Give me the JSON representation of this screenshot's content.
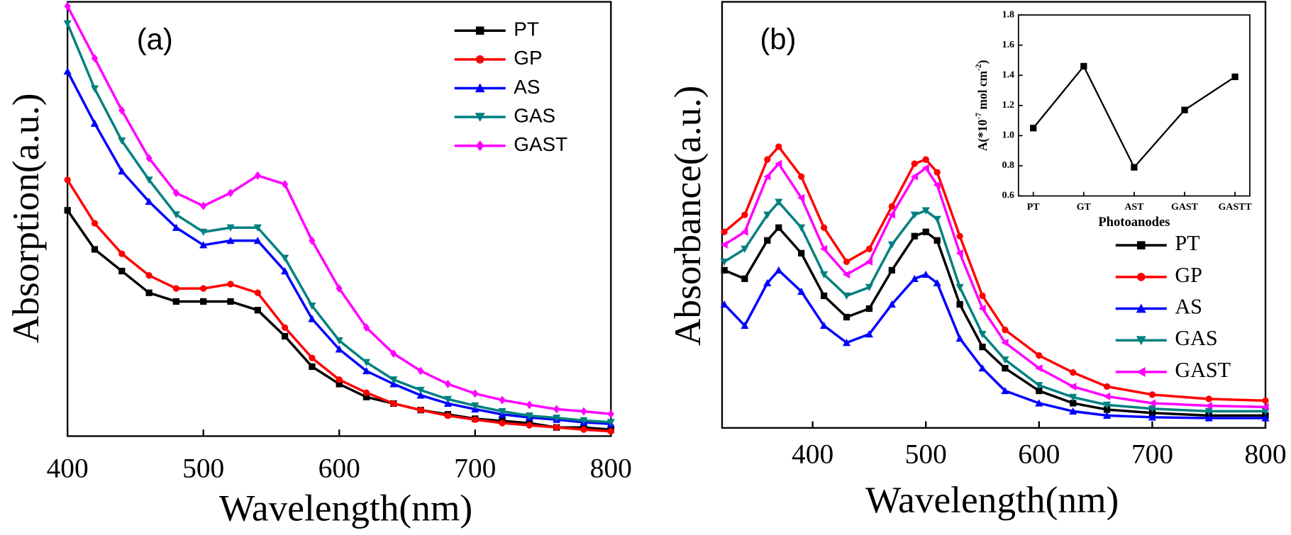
{
  "chart_data": [
    {
      "type": "line",
      "annotation": "(a)",
      "x_label": "Wavelength(nm)",
      "y_label": "Absorption(a.u.)",
      "x": [
        400,
        420,
        440,
        460,
        480,
        500,
        520,
        540,
        560,
        580,
        600,
        620,
        640,
        660,
        680,
        700,
        720,
        740,
        760,
        780,
        800
      ],
      "xlim": [
        400,
        800
      ],
      "xticks": [
        400,
        500,
        600,
        700,
        800
      ],
      "ylim": [
        0,
        1
      ],
      "legend": "upper right",
      "series": [
        {
          "name": "PT",
          "color": "#000000",
          "marker": "square",
          "values": [
            0.52,
            0.43,
            0.38,
            0.33,
            0.31,
            0.31,
            0.31,
            0.29,
            0.23,
            0.16,
            0.12,
            0.09,
            0.075,
            0.06,
            0.05,
            0.04,
            0.035,
            0.03,
            0.02,
            0.02,
            0.015
          ]
        },
        {
          "name": "GP",
          "color": "#ff0000",
          "marker": "circle",
          "values": [
            0.59,
            0.49,
            0.42,
            0.37,
            0.34,
            0.34,
            0.35,
            0.33,
            0.25,
            0.18,
            0.13,
            0.1,
            0.075,
            0.06,
            0.047,
            0.038,
            0.03,
            0.025,
            0.02,
            0.015,
            0.011
          ]
        },
        {
          "name": "AS",
          "color": "#0000ff",
          "marker": "triangle-up",
          "values": [
            0.84,
            0.72,
            0.61,
            0.54,
            0.48,
            0.44,
            0.45,
            0.45,
            0.38,
            0.27,
            0.2,
            0.15,
            0.12,
            0.094,
            0.075,
            0.062,
            0.05,
            0.043,
            0.038,
            0.032,
            0.028
          ]
        },
        {
          "name": "GAS",
          "color": "#008080",
          "marker": "triangle-down",
          "values": [
            0.95,
            0.8,
            0.68,
            0.59,
            0.51,
            0.47,
            0.48,
            0.48,
            0.41,
            0.3,
            0.22,
            0.17,
            0.13,
            0.106,
            0.085,
            0.07,
            0.057,
            0.047,
            0.042,
            0.036,
            0.032
          ]
        },
        {
          "name": "GAST",
          "color": "#ff00ff",
          "marker": "diamond",
          "values": [
            0.99,
            0.87,
            0.75,
            0.64,
            0.56,
            0.53,
            0.56,
            0.6,
            0.58,
            0.45,
            0.34,
            0.25,
            0.19,
            0.15,
            0.12,
            0.098,
            0.083,
            0.072,
            0.062,
            0.057,
            0.051
          ]
        }
      ]
    },
    {
      "type": "line",
      "annotation": "(b)",
      "x_label": "Wavelength(nm)",
      "y_label": "Absorbance(a.u.)",
      "x": [
        322,
        340,
        360,
        370,
        390,
        410,
        430,
        450,
        470,
        490,
        500,
        510,
        530,
        550,
        570,
        600,
        630,
        660,
        700,
        750,
        800
      ],
      "xlim": [
        320,
        800
      ],
      "xticks": [
        400,
        500,
        600,
        700,
        800
      ],
      "ylim": [
        0,
        1
      ],
      "legend": "center right",
      "series": [
        {
          "name": "PT",
          "color": "#000000",
          "marker": "square",
          "values": [
            0.37,
            0.35,
            0.44,
            0.47,
            0.41,
            0.31,
            0.26,
            0.28,
            0.37,
            0.45,
            0.46,
            0.44,
            0.29,
            0.19,
            0.14,
            0.087,
            0.058,
            0.043,
            0.035,
            0.029,
            0.029
          ]
        },
        {
          "name": "GP",
          "color": "#ff0000",
          "marker": "circle",
          "values": [
            0.46,
            0.5,
            0.63,
            0.66,
            0.59,
            0.47,
            0.39,
            0.42,
            0.52,
            0.62,
            0.63,
            0.6,
            0.45,
            0.31,
            0.23,
            0.17,
            0.13,
            0.097,
            0.078,
            0.068,
            0.064
          ]
        },
        {
          "name": "AS",
          "color": "#0000ff",
          "marker": "triangle-up",
          "values": [
            0.29,
            0.24,
            0.34,
            0.37,
            0.32,
            0.24,
            0.2,
            0.22,
            0.29,
            0.35,
            0.36,
            0.34,
            0.21,
            0.14,
            0.087,
            0.058,
            0.039,
            0.029,
            0.025,
            0.023,
            0.023
          ]
        },
        {
          "name": "GAS",
          "color": "#008080",
          "marker": "triangle-down",
          "values": [
            0.39,
            0.42,
            0.5,
            0.53,
            0.47,
            0.36,
            0.31,
            0.33,
            0.43,
            0.5,
            0.51,
            0.49,
            0.33,
            0.22,
            0.16,
            0.1,
            0.072,
            0.054,
            0.045,
            0.039,
            0.039
          ]
        },
        {
          "name": "GAST",
          "color": "#ff00ff",
          "marker": "triangle-left",
          "values": [
            0.43,
            0.46,
            0.59,
            0.62,
            0.54,
            0.42,
            0.36,
            0.39,
            0.5,
            0.59,
            0.61,
            0.57,
            0.41,
            0.28,
            0.2,
            0.14,
            0.097,
            0.074,
            0.058,
            0.052,
            0.049
          ]
        }
      ]
    },
    {
      "type": "category-line",
      "x_label": "Photoanodes",
      "y_label": [
        "A(*10",
        "-7",
        " mol cm",
        "-2",
        ")"
      ],
      "categories": [
        "PT",
        "GT",
        "AST",
        "GAST",
        "GASTT"
      ],
      "values": [
        1.05,
        1.46,
        0.79,
        1.17,
        1.39
      ],
      "color": "#000000",
      "marker": "square",
      "ylim": [
        0.6,
        1.8
      ],
      "yticks": [
        0.6,
        0.8,
        {
          "value": 1,
          "label": "1.0"
        },
        1.2,
        1.4,
        1.6,
        1.8
      ]
    }
  ]
}
